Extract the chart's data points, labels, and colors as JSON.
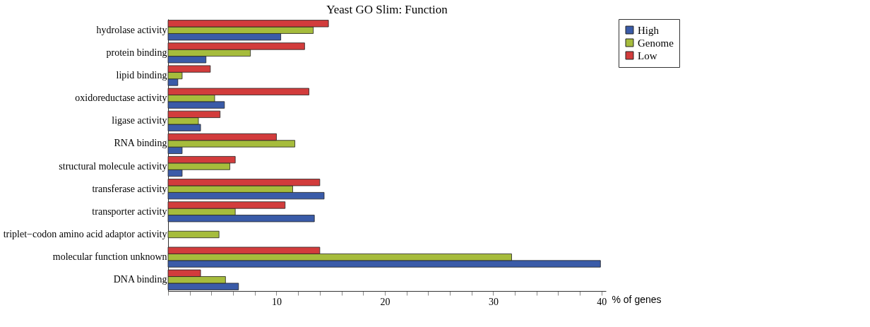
{
  "chart_data": {
    "type": "bar",
    "orientation": "horizontal",
    "title": "Yeast GO Slim: Function",
    "xlabel": "% of genes",
    "categories": [
      "hydrolase activity",
      "protein binding",
      "lipid binding",
      "oxidoreductase activity",
      "ligase activity",
      "RNA binding",
      "structural molecule activity",
      "transferase activity",
      "transporter activity",
      "triplet−codon amino acid adaptor activity",
      "molecular function unknown",
      "DNA binding"
    ],
    "series": [
      {
        "name": "High",
        "color": "#3a5ba8",
        "values": [
          10.4,
          3.5,
          0.9,
          5.2,
          3.0,
          1.3,
          1.3,
          14.4,
          13.5,
          null,
          39.9,
          6.5
        ]
      },
      {
        "name": "Genome",
        "color": "#a6bc3c",
        "values": [
          13.4,
          7.6,
          1.3,
          4.3,
          2.8,
          11.7,
          5.7,
          11.5,
          6.2,
          4.7,
          31.7,
          5.3
        ]
      },
      {
        "name": "Low",
        "color": "#d23c3c",
        "values": [
          14.8,
          12.6,
          3.9,
          13.0,
          4.8,
          10.0,
          6.2,
          14.0,
          10.8,
          null,
          14.0,
          3.0
        ]
      }
    ],
    "xlim": [
      0,
      40.4
    ],
    "xticks": [
      {
        "value": 0,
        "label": null
      },
      {
        "value": 2,
        "label": null
      },
      {
        "value": 4,
        "label": null
      },
      {
        "value": 6,
        "label": null
      },
      {
        "value": 8,
        "label": null
      },
      10,
      {
        "value": 12,
        "label": null
      },
      {
        "value": 14,
        "label": null
      },
      {
        "value": 16,
        "label": null
      },
      {
        "value": 18,
        "label": null
      },
      20,
      {
        "value": 22,
        "label": null
      },
      {
        "value": 24,
        "label": null
      },
      {
        "value": 26,
        "label": null
      },
      {
        "value": 28,
        "label": null
      },
      30,
      {
        "value": 32,
        "label": null
      },
      {
        "value": 34,
        "label": null
      },
      {
        "value": 36,
        "label": null
      },
      {
        "value": 38,
        "label": null
      },
      40
    ],
    "grid": false,
    "legend": "right"
  }
}
